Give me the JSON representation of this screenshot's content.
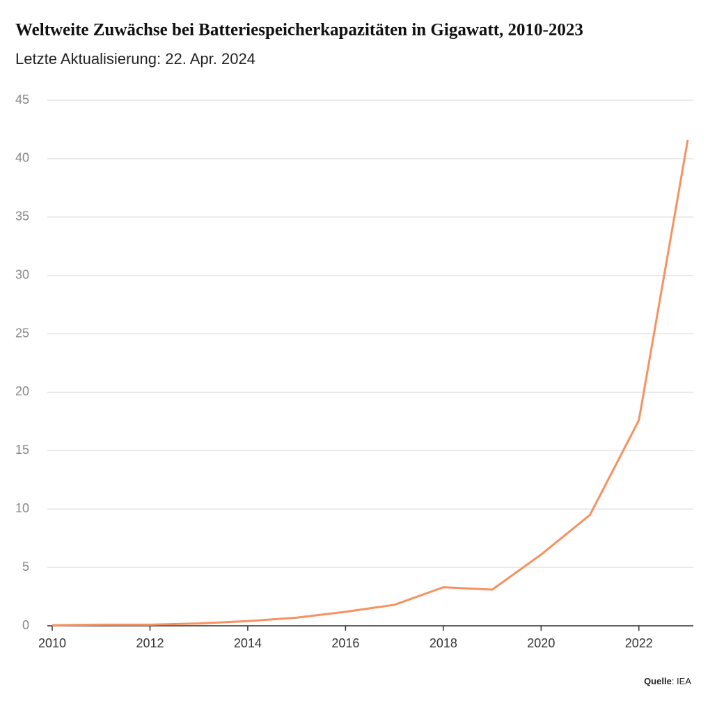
{
  "chart_data": {
    "type": "line",
    "title": "Weltweite Zuwächse bei Batteriespeicherkapazitäten in Gigawatt, 2010-2023",
    "subtitle": "Letzte Aktualisierung: 22. Apr. 2024",
    "x": [
      2010,
      2011,
      2012,
      2013,
      2014,
      2015,
      2016,
      2017,
      2018,
      2019,
      2020,
      2021,
      2022,
      2023
    ],
    "series": [
      {
        "color": "#f7915f",
        "values": [
          0.05,
          0.1,
          0.1,
          0.2,
          0.4,
          0.7,
          1.2,
          1.8,
          3.3,
          3.1,
          6.1,
          9.5,
          17.6,
          41.6
        ]
      }
    ],
    "xlim": [
      2010,
      2023
    ],
    "xticks": [
      2010,
      2012,
      2014,
      2016,
      2018,
      2020,
      2022
    ],
    "ylim": [
      0,
      45
    ],
    "yticks": [
      0,
      5,
      10,
      15,
      20,
      25,
      30,
      35,
      40,
      45
    ],
    "grid": true,
    "source": {
      "label": "Quelle",
      "value": ": IEA"
    }
  }
}
